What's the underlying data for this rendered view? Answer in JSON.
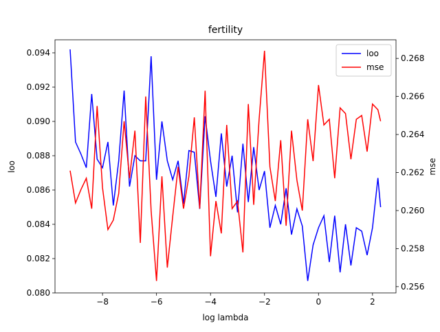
{
  "chart_data": {
    "type": "line",
    "title": "fertility",
    "xlabel": "log lambda",
    "ylabel": "loo",
    "y2label": "mse",
    "x": [
      -9.2,
      -9.0,
      -8.8,
      -8.6,
      -8.4,
      -8.2,
      -8.0,
      -7.8,
      -7.6,
      -7.4,
      -7.2,
      -7.0,
      -6.8,
      -6.6,
      -6.4,
      -6.2,
      -6.0,
      -5.8,
      -5.6,
      -5.4,
      -5.2,
      -5.0,
      -4.8,
      -4.6,
      -4.4,
      -4.2,
      -4.0,
      -3.8,
      -3.6,
      -3.4,
      -3.2,
      -3.0,
      -2.8,
      -2.6,
      -2.4,
      -2.2,
      -2.0,
      -1.8,
      -1.6,
      -1.4,
      -1.2,
      -1.0,
      -0.8,
      -0.6,
      -0.4,
      -0.2,
      0.0,
      0.2,
      0.4,
      0.6,
      0.8,
      1.0,
      1.2,
      1.4,
      1.6,
      1.8,
      2.0,
      2.2,
      2.3
    ],
    "series": [
      {
        "name": "loo",
        "color": "#0000ff",
        "axis": "y",
        "values": [
          0.0942,
          0.0888,
          0.0881,
          0.0873,
          0.0916,
          0.0878,
          0.0873,
          0.0888,
          0.0851,
          0.0877,
          0.0918,
          0.0862,
          0.088,
          0.0877,
          0.0877,
          0.0938,
          0.0866,
          0.09,
          0.0877,
          0.0866,
          0.0877,
          0.0852,
          0.0883,
          0.0882,
          0.0849,
          0.0903,
          0.0877,
          0.0856,
          0.0893,
          0.0862,
          0.088,
          0.0847,
          0.0887,
          0.0853,
          0.0885,
          0.086,
          0.0871,
          0.0838,
          0.0851,
          0.084,
          0.0861,
          0.0834,
          0.0849,
          0.0839,
          0.0807,
          0.0828,
          0.0838,
          0.0845,
          0.0818,
          0.0845,
          0.0812,
          0.084,
          0.0816,
          0.0838,
          0.0836,
          0.0822,
          0.0838,
          0.0867,
          0.085
        ]
      },
      {
        "name": "mse",
        "color": "#ff0000",
        "axis": "y2",
        "values": [
          0.2621,
          0.2604,
          0.2611,
          0.2617,
          0.2601,
          0.2655,
          0.2612,
          0.259,
          0.2595,
          0.2609,
          0.2647,
          0.2617,
          0.2642,
          0.2583,
          0.266,
          0.26,
          0.2563,
          0.2618,
          0.257,
          0.2597,
          0.2623,
          0.2601,
          0.2618,
          0.2649,
          0.2601,
          0.2663,
          0.2576,
          0.2605,
          0.2588,
          0.2645,
          0.2601,
          0.2605,
          0.2578,
          0.2656,
          0.2603,
          0.2648,
          0.2684,
          0.2623,
          0.2605,
          0.2637,
          0.2592,
          0.2642,
          0.2616,
          0.26,
          0.2648,
          0.2626,
          0.2666,
          0.2645,
          0.2648,
          0.2617,
          0.2654,
          0.2651,
          0.2627,
          0.2648,
          0.265,
          0.2631,
          0.2656,
          0.2653,
          0.2647
        ]
      }
    ],
    "xlim": [
      -9.76,
      2.87
    ],
    "xticks": [
      {
        "value": -8,
        "label": "−8"
      },
      {
        "value": -6,
        "label": "−6"
      },
      {
        "value": -4,
        "label": "−4"
      },
      {
        "value": -2,
        "label": "−2"
      },
      0,
      2
    ],
    "ylim": [
      0.08,
      0.09476
    ],
    "yticks": [
      {
        "value": 0.08,
        "label": "0.080"
      },
      0.082,
      0.084,
      0.086,
      0.088,
      {
        "value": 0.09,
        "label": "0.090"
      },
      0.092,
      0.094
    ],
    "y2lim": [
      0.25567,
      0.26898
    ],
    "y2ticks": [
      0.256,
      0.258,
      {
        "value": 0.26,
        "label": "0.260"
      },
      0.262,
      0.264,
      0.266,
      0.268
    ],
    "legend": "upper right"
  }
}
